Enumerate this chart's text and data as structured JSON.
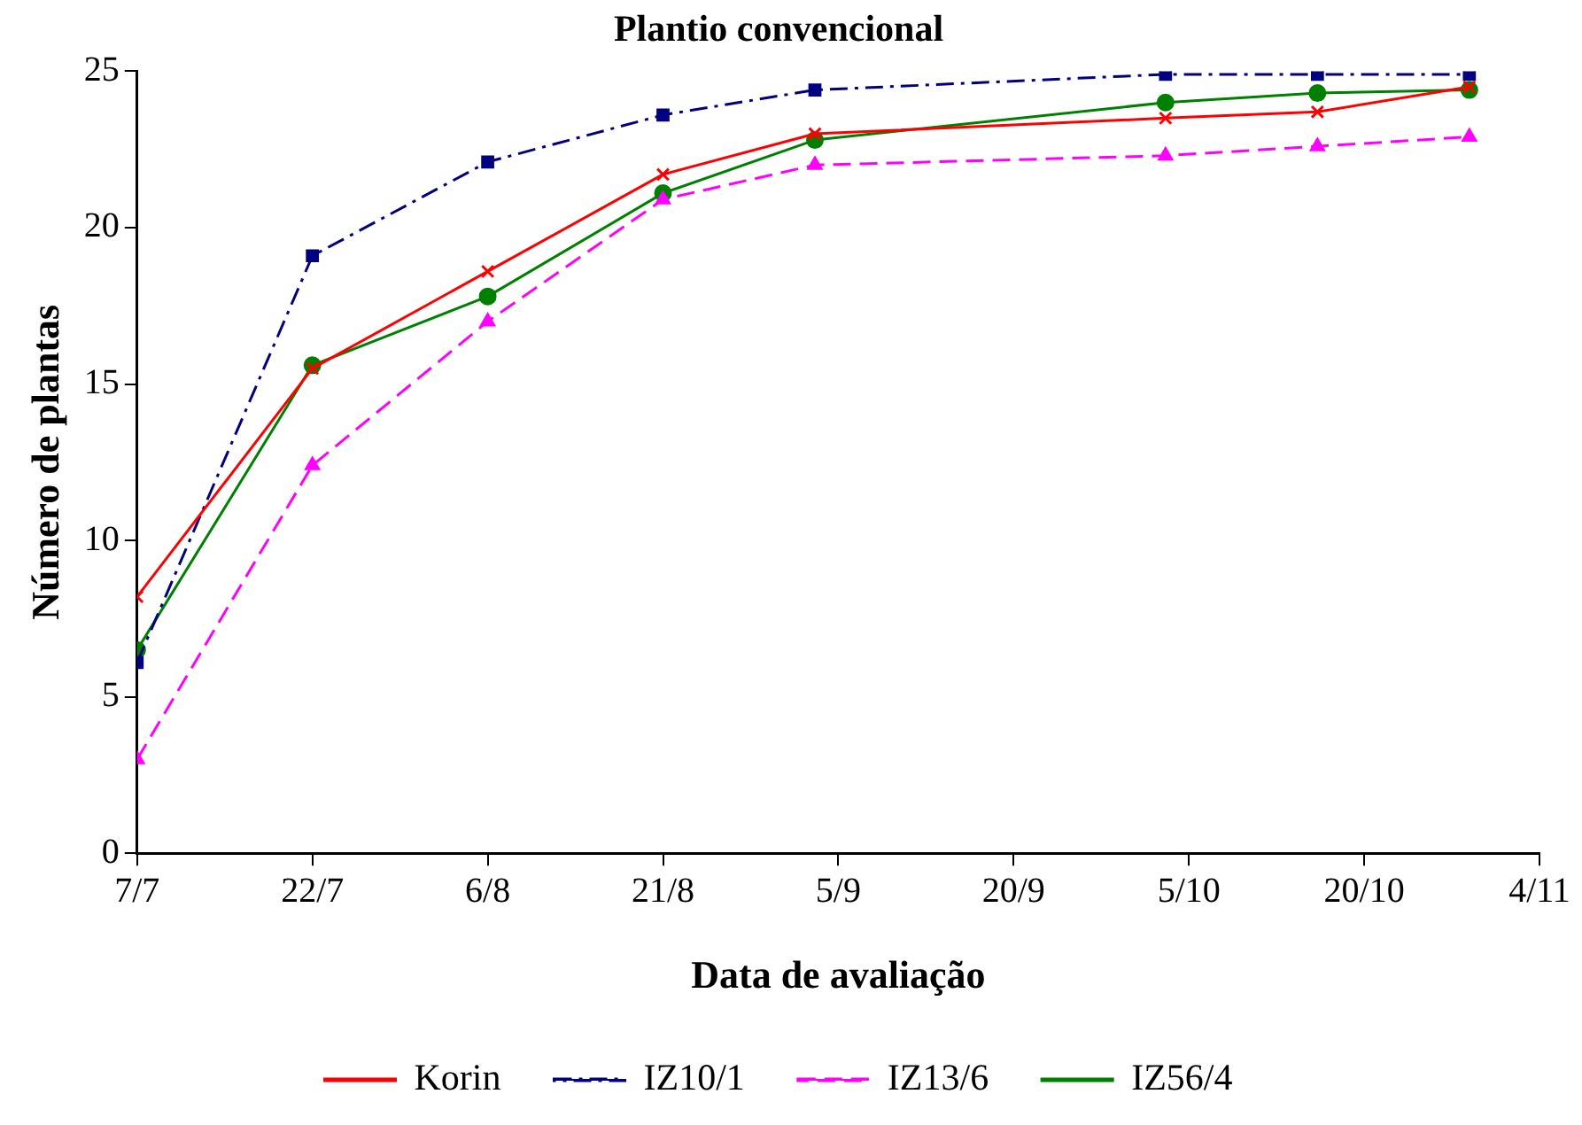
{
  "chart_data": {
    "type": "line",
    "title": "Plantio convencional",
    "xlabel": "Data de avaliação",
    "ylabel": "Número de plantas",
    "x": [
      "--07-07",
      "--07-22",
      "--08-06",
      "--08-21",
      "--09-03",
      "--10-03",
      "--10-16",
      "--10-29"
    ],
    "series": [
      {
        "name": "Korin",
        "color": "#ff0000",
        "marker": "cross",
        "line_style": "solid",
        "values": [
          8.2,
          15.5,
          18.6,
          21.7,
          23.0,
          23.5,
          23.7,
          24.5
        ]
      },
      {
        "name": "IZ10/1",
        "color": "#000080",
        "marker": "square",
        "line_style": "dashdot",
        "values": [
          6.1,
          19.1,
          22.1,
          23.6,
          24.4,
          24.9,
          24.9,
          24.9
        ]
      },
      {
        "name": "IZ13/6",
        "color": "#ff00ff",
        "marker": "triangle",
        "line_style": "dashed",
        "values": [
          3.0,
          12.4,
          17.0,
          20.9,
          22.0,
          22.3,
          22.6,
          22.9
        ]
      },
      {
        "name": "IZ56/4",
        "color": "#008000",
        "marker": "circle",
        "line_style": "solid",
        "values": [
          6.5,
          15.6,
          17.8,
          21.1,
          22.8,
          24.0,
          24.3,
          24.4
        ]
      }
    ],
    "xlim": [
      "--07-07",
      "--11-04"
    ],
    "xticks": [
      {
        "value": "--07-07",
        "label": "7/7"
      },
      {
        "value": "--07-22",
        "label": "22/7"
      },
      {
        "value": "--08-06",
        "label": "6/8"
      },
      {
        "value": "--08-21",
        "label": "21/8"
      },
      {
        "value": "--09-05",
        "label": "5/9"
      },
      {
        "value": "--09-20",
        "label": "20/9"
      },
      {
        "value": "--10-05",
        "label": "5/10"
      },
      {
        "value": "--10-20",
        "label": "20/10"
      },
      {
        "value": "--11-04",
        "label": "4/11"
      }
    ],
    "ylim": [
      0,
      25
    ],
    "yticks": [
      0,
      5,
      10,
      15,
      20,
      25
    ],
    "grid": false,
    "legend": "bottom"
  }
}
